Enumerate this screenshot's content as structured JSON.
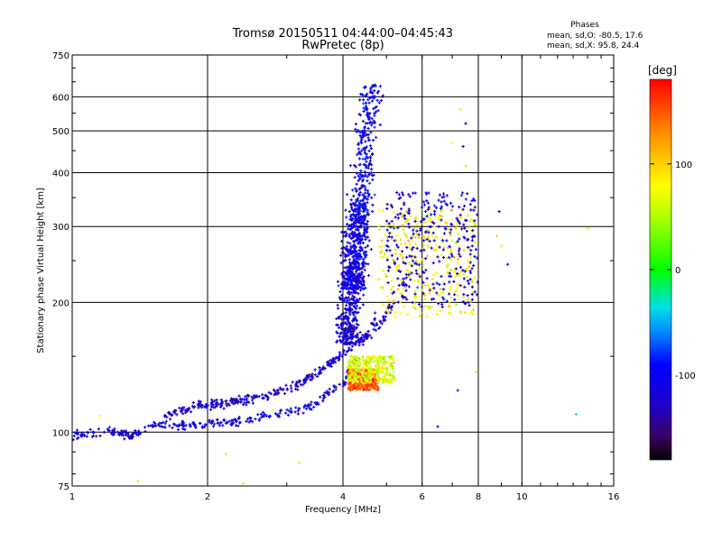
{
  "chart_data": {
    "type": "scatter",
    "title": "Tromsø 20150511 04:44:00–04:45:43",
    "subtitle": "RwPretec (8p)",
    "xlabel": "Frequency [MHz]",
    "ylabel": "Stationary phase Virtual Height [km]",
    "x_scale": "log",
    "y_scale": "log",
    "xlim": [
      1,
      16
    ],
    "ylim": [
      75,
      750
    ],
    "x_ticks": [
      1,
      2,
      4,
      6,
      8,
      10,
      16
    ],
    "y_ticks": [
      75,
      100,
      200,
      300,
      400,
      500,
      600,
      750
    ],
    "grid": true,
    "phase_stats": {
      "heading": "Phases",
      "line_o": "mean, sd,O: -80.5, 17.6",
      "line_x": "mean, sd,X:  95.8, 24.4"
    },
    "colorbar": {
      "label": "[deg]",
      "ticks": [
        100,
        0,
        -100
      ],
      "range": [
        -180,
        180
      ]
    },
    "traces": [
      {
        "kind": "curve",
        "phase": -110,
        "points": [
          [
            1.0,
            99
          ],
          [
            1.1,
            99
          ],
          [
            1.2,
            101
          ],
          [
            1.35,
            98
          ],
          [
            1.5,
            103
          ],
          [
            1.7,
            104
          ],
          [
            1.9,
            104
          ],
          [
            2.1,
            105
          ],
          [
            2.5,
            107
          ],
          [
            3.0,
            111
          ],
          [
            3.4,
            115
          ],
          [
            3.7,
            123
          ],
          [
            4.0,
            130
          ],
          [
            4.15,
            140
          ],
          [
            4.3,
            150
          ],
          [
            4.5,
            165
          ],
          [
            4.75,
            185
          ]
        ]
      },
      {
        "kind": "curve",
        "phase": -120,
        "points": [
          [
            1.6,
            109
          ],
          [
            1.9,
            115
          ],
          [
            2.2,
            117
          ],
          [
            2.6,
            120
          ],
          [
            3.0,
            126
          ],
          [
            3.4,
            134
          ],
          [
            3.8,
            146
          ],
          [
            4.2,
            158
          ],
          [
            4.6,
            170
          ],
          [
            4.9,
            182
          ],
          [
            5.2,
            200
          ]
        ]
      },
      {
        "kind": "column",
        "phase": -105,
        "x": [
          3.95,
          4.7
        ],
        "y": [
          215,
          640
        ]
      },
      {
        "kind": "column",
        "phase": -115,
        "x": [
          3.95,
          4.35
        ],
        "y": [
          160,
          340
        ]
      },
      {
        "kind": "cloud",
        "phase": 85,
        "x": [
          4.8,
          7.9
        ],
        "y": [
          185,
          330
        ]
      },
      {
        "kind": "cloud",
        "phase": -115,
        "x": [
          5.0,
          8.0
        ],
        "y": [
          195,
          360
        ]
      },
      {
        "kind": "cloud",
        "phase": 150,
        "x": [
          4.1,
          4.8
        ],
        "y": [
          125,
          140
        ]
      },
      {
        "kind": "cloud",
        "phase": 70,
        "x": [
          4.1,
          5.2
        ],
        "y": [
          130,
          150
        ]
      }
    ],
    "isolated_points": [
      {
        "x": 7.3,
        "y": 560,
        "phase": 90
      },
      {
        "x": 7.5,
        "y": 520,
        "phase": -95
      },
      {
        "x": 7.4,
        "y": 460,
        "phase": -100
      },
      {
        "x": 7.5,
        "y": 415,
        "phase": 90
      },
      {
        "x": 7.0,
        "y": 470,
        "phase": 80
      },
      {
        "x": 8.9,
        "y": 325,
        "phase": -110
      },
      {
        "x": 9.3,
        "y": 245,
        "phase": -110
      },
      {
        "x": 8.8,
        "y": 285,
        "phase": 100
      },
      {
        "x": 9.0,
        "y": 270,
        "phase": 90
      },
      {
        "x": 7.2,
        "y": 125,
        "phase": -80
      },
      {
        "x": 7.9,
        "y": 138,
        "phase": 90
      },
      {
        "x": 13.2,
        "y": 110,
        "phase": -30
      },
      {
        "x": 3.2,
        "y": 85,
        "phase": 90
      },
      {
        "x": 2.4,
        "y": 76,
        "phase": 90
      },
      {
        "x": 1.4,
        "y": 77,
        "phase": 90
      },
      {
        "x": 2.2,
        "y": 89,
        "phase": 90
      },
      {
        "x": 1.15,
        "y": 109,
        "phase": 80
      },
      {
        "x": 14.0,
        "y": 297,
        "phase": 90
      },
      {
        "x": 6.5,
        "y": 103,
        "phase": -100
      }
    ]
  }
}
